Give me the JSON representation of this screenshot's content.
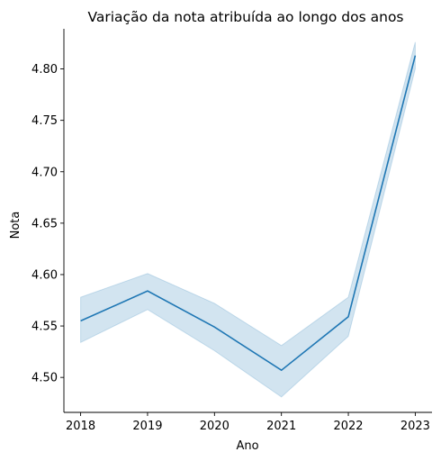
{
  "chart_data": {
    "type": "line",
    "title": "Variação da nota atribuída ao longo dos anos",
    "xlabel": "Ano",
    "ylabel": "Nota",
    "x": [
      2018,
      2019,
      2020,
      2021,
      2022,
      2023
    ],
    "x_ticks": [
      "2018",
      "2019",
      "2020",
      "2021",
      "2022",
      "2023"
    ],
    "y_ticks": [
      "4.50",
      "4.55",
      "4.60",
      "4.65",
      "4.70",
      "4.75",
      "4.80"
    ],
    "xlim": [
      2017.75,
      2023.25
    ],
    "ylim": [
      4.466,
      4.839
    ],
    "grid": false,
    "series": [
      {
        "values": [
          4.555,
          4.584,
          4.549,
          4.507,
          4.559,
          4.813
        ],
        "ci_low": [
          4.534,
          4.566,
          4.526,
          4.481,
          4.54,
          4.8
        ],
        "ci_high": [
          4.578,
          4.601,
          4.572,
          4.531,
          4.578,
          4.826
        ]
      }
    ],
    "colors": {
      "line": "#1f77b4",
      "band": "#1f77b4",
      "axis": "#000000"
    }
  }
}
